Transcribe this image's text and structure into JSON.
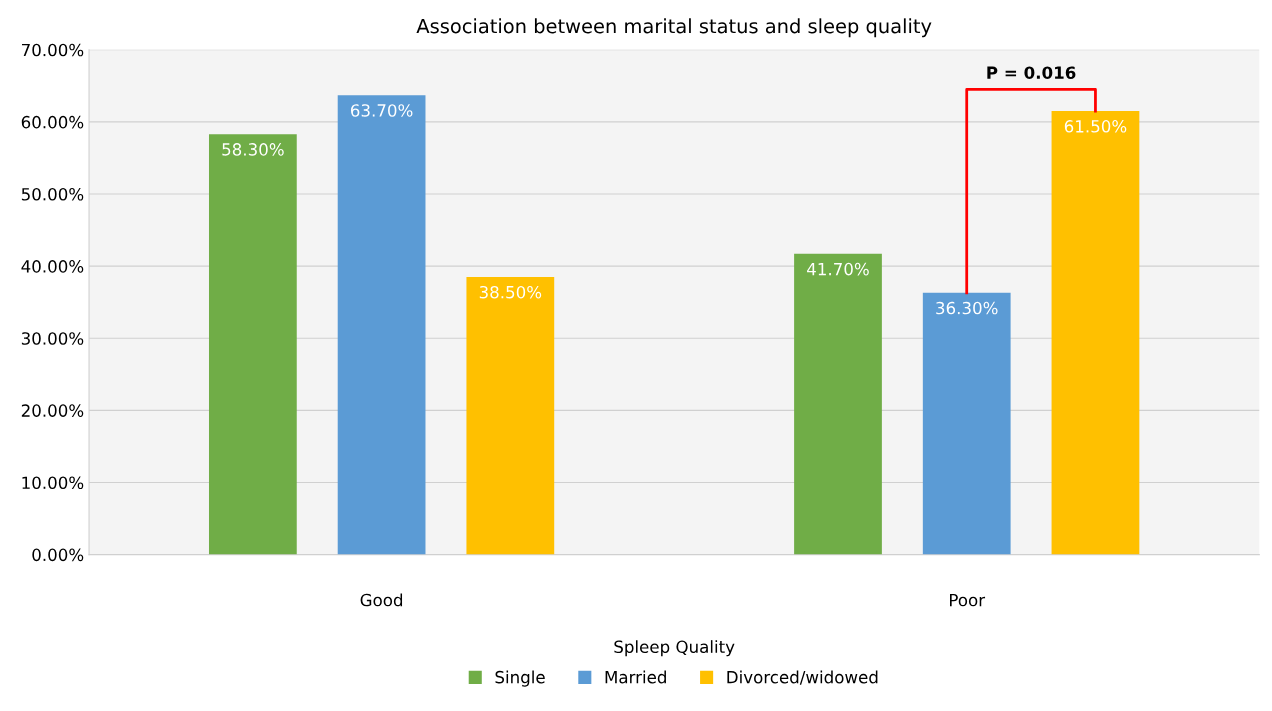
{
  "chart_data": {
    "type": "bar",
    "title": "Association between marital status and sleep quality",
    "xlabel": "Spleep Quality",
    "categories": [
      "Good",
      "Poor"
    ],
    "series": [
      {
        "name": "Single",
        "color": "#70ad47",
        "values": [
          58.3,
          41.7
        ],
        "value_labels": [
          "58.30%",
          "41.70%"
        ]
      },
      {
        "name": "Married",
        "color": "#5b9bd5",
        "values": [
          63.7,
          36.3
        ],
        "value_labels": [
          "63.70%",
          "36.30%"
        ]
      },
      {
        "name": "Divorced/widowed",
        "color": "#ffc000",
        "values": [
          38.5,
          61.5
        ],
        "value_labels": [
          "38.50%",
          "61.50%"
        ]
      }
    ],
    "ylim": [
      0,
      70
    ],
    "yticks": [
      {
        "value": 0,
        "label": "0.00%"
      },
      {
        "value": 10,
        "label": "10.00%"
      },
      {
        "value": 20,
        "label": "20.00%"
      },
      {
        "value": 30,
        "label": "30.00%"
      },
      {
        "value": 40,
        "label": "40.00%"
      },
      {
        "value": 50,
        "label": "50.00%"
      },
      {
        "value": 60,
        "label": "60.00%"
      },
      {
        "value": 70,
        "label": "70.00%"
      }
    ],
    "grid": "y",
    "legend": "bottom",
    "annotations": [
      "P = 0.016"
    ]
  }
}
